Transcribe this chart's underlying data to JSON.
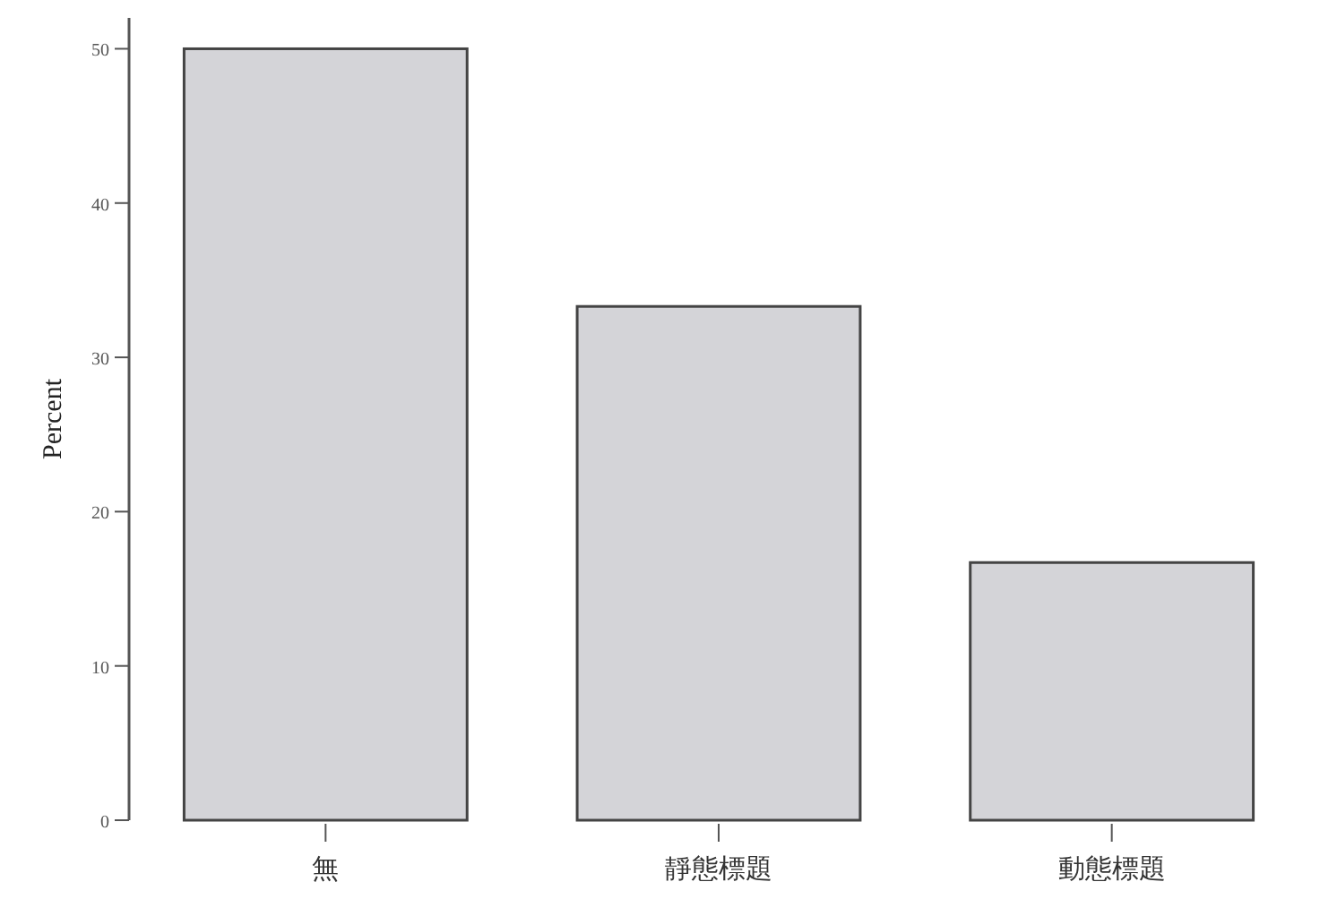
{
  "chart_data": {
    "type": "bar",
    "ylabel": "Percent",
    "categories": [
      "無",
      "靜態標題",
      "動態標題"
    ],
    "values": [
      50,
      33.3,
      16.7
    ],
    "color": "#d4d4d8",
    "ylim": [
      0,
      52
    ],
    "yticks": [
      0,
      10,
      20,
      30,
      40,
      50
    ]
  }
}
